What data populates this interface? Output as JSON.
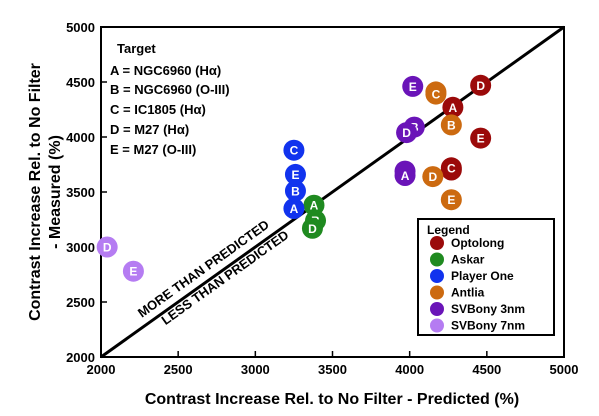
{
  "chart_data": {
    "type": "scatter",
    "title": "",
    "xlabel": "Contrast Increase Rel. to No Filter - Predicted (%)",
    "ylabel_lines": [
      "Contrast Increase Rel. to No Filter",
      "- Measured (%)"
    ],
    "xlim": [
      2000,
      5000
    ],
    "ylim": [
      2000,
      5000
    ],
    "xticks": [
      "2000",
      "2500",
      "3000",
      "3500",
      "4000",
      "4500",
      "5000"
    ],
    "yticks": [
      "2000",
      "2500",
      "3000",
      "3500",
      "4000",
      "4500",
      "5000"
    ],
    "grid": false,
    "reference_line": {
      "from": [
        2000,
        2000
      ],
      "to": [
        5000,
        5000
      ]
    },
    "annotations": {
      "above": "MORE THAN PREDICTED",
      "below": "LESS THAN PREDICTED"
    },
    "target_box": {
      "title": "Target",
      "entries": [
        "A = NGC6960 (Hα)",
        "B = NGC6960 (O-III)",
        "C = IC1805 (Hα)",
        "D = M27 (Hα)",
        "E = M27 (O-III)"
      ]
    },
    "legend": {
      "title": "Legend",
      "position": "bottom-right"
    },
    "series": [
      {
        "name": "Optolong",
        "color": "#9b0a0a",
        "points": [
          {
            "label": "A",
            "x": 4280,
            "y": 4270
          },
          {
            "label": "B",
            "x": 4270,
            "y": 3700
          },
          {
            "label": "C",
            "x": 4270,
            "y": 3720
          },
          {
            "label": "D",
            "x": 4460,
            "y": 4470
          },
          {
            "label": "E",
            "x": 4460,
            "y": 3990
          }
        ]
      },
      {
        "name": "Askar",
        "color": "#1f8a20",
        "points": [
          {
            "label": "A",
            "x": 3380,
            "y": 3380
          },
          {
            "label": "B",
            "x": 3390,
            "y": 3240
          },
          {
            "label": "D",
            "x": 3370,
            "y": 3170
          }
        ]
      },
      {
        "name": "Player One",
        "color": "#1133ee",
        "points": [
          {
            "label": "A",
            "x": 3250,
            "y": 3350
          },
          {
            "label": "B",
            "x": 3260,
            "y": 3510
          },
          {
            "label": "C",
            "x": 3250,
            "y": 3880
          },
          {
            "label": "E",
            "x": 3260,
            "y": 3660
          }
        ]
      },
      {
        "name": "Antlia",
        "color": "#cc6a10",
        "points": [
          {
            "label": "A",
            "x": 4170,
            "y": 4410
          },
          {
            "label": "B",
            "x": 4270,
            "y": 4110
          },
          {
            "label": "C",
            "x": 4170,
            "y": 4390
          },
          {
            "label": "D",
            "x": 4150,
            "y": 3640
          },
          {
            "label": "E",
            "x": 4270,
            "y": 3430
          }
        ]
      },
      {
        "name": "SVBony 3nm",
        "color": "#6a14b8",
        "points": [
          {
            "label": "B",
            "x": 4030,
            "y": 4090
          },
          {
            "label": "C",
            "x": 3970,
            "y": 3690
          },
          {
            "label": "A",
            "x": 3970,
            "y": 3650
          },
          {
            "label": "D",
            "x": 3980,
            "y": 4040
          },
          {
            "label": "E",
            "x": 4020,
            "y": 4460
          }
        ]
      },
      {
        "name": "SVBony 7nm",
        "color": "#b57cf2",
        "points": [
          {
            "label": "D",
            "x": 2040,
            "y": 3000
          },
          {
            "label": "E",
            "x": 2210,
            "y": 2780
          }
        ]
      }
    ]
  }
}
